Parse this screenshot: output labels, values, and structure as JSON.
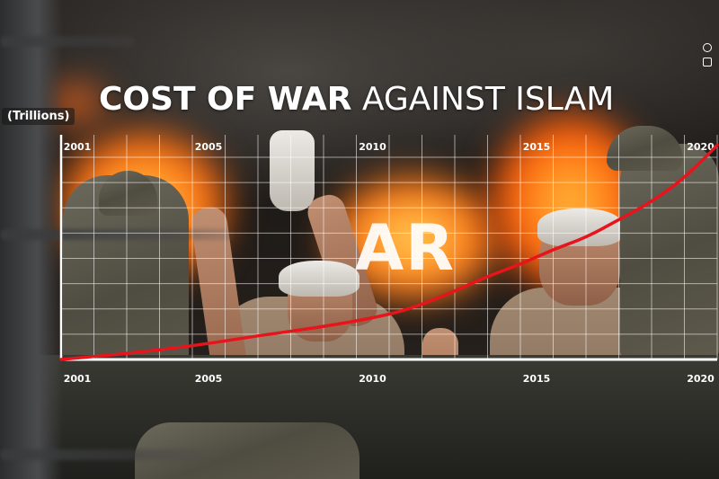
{
  "header": {
    "title_bold": "COST OF WAR",
    "title_light": "AGAINST ISLAM",
    "unit_label": "(Trillions)"
  },
  "background": {
    "watermark": "AR"
  },
  "chart_data": {
    "type": "line",
    "title": "COST OF WAR AGAINST ISLAM",
    "ylabel": "(Trillions)",
    "xlabel": "",
    "x_tick_labels": [
      "2001",
      "2005",
      "2010",
      "2015",
      "2020"
    ],
    "xlim": [
      2001,
      2021
    ],
    "ylim": [
      0,
      6.8
    ],
    "grid": true,
    "series": [
      {
        "color": "#e8141c",
        "x": [
          2001,
          2003,
          2005,
          2007,
          2009,
          2011,
          2012,
          2013,
          2014,
          2015,
          2016,
          2017,
          2018,
          2019,
          2020,
          2021
        ],
        "y": [
          0.0,
          0.2,
          0.45,
          0.8,
          1.1,
          1.5,
          1.85,
          2.3,
          2.8,
          3.2,
          3.7,
          4.1,
          4.7,
          5.3,
          6.1,
          7.2
        ]
      }
    ]
  }
}
